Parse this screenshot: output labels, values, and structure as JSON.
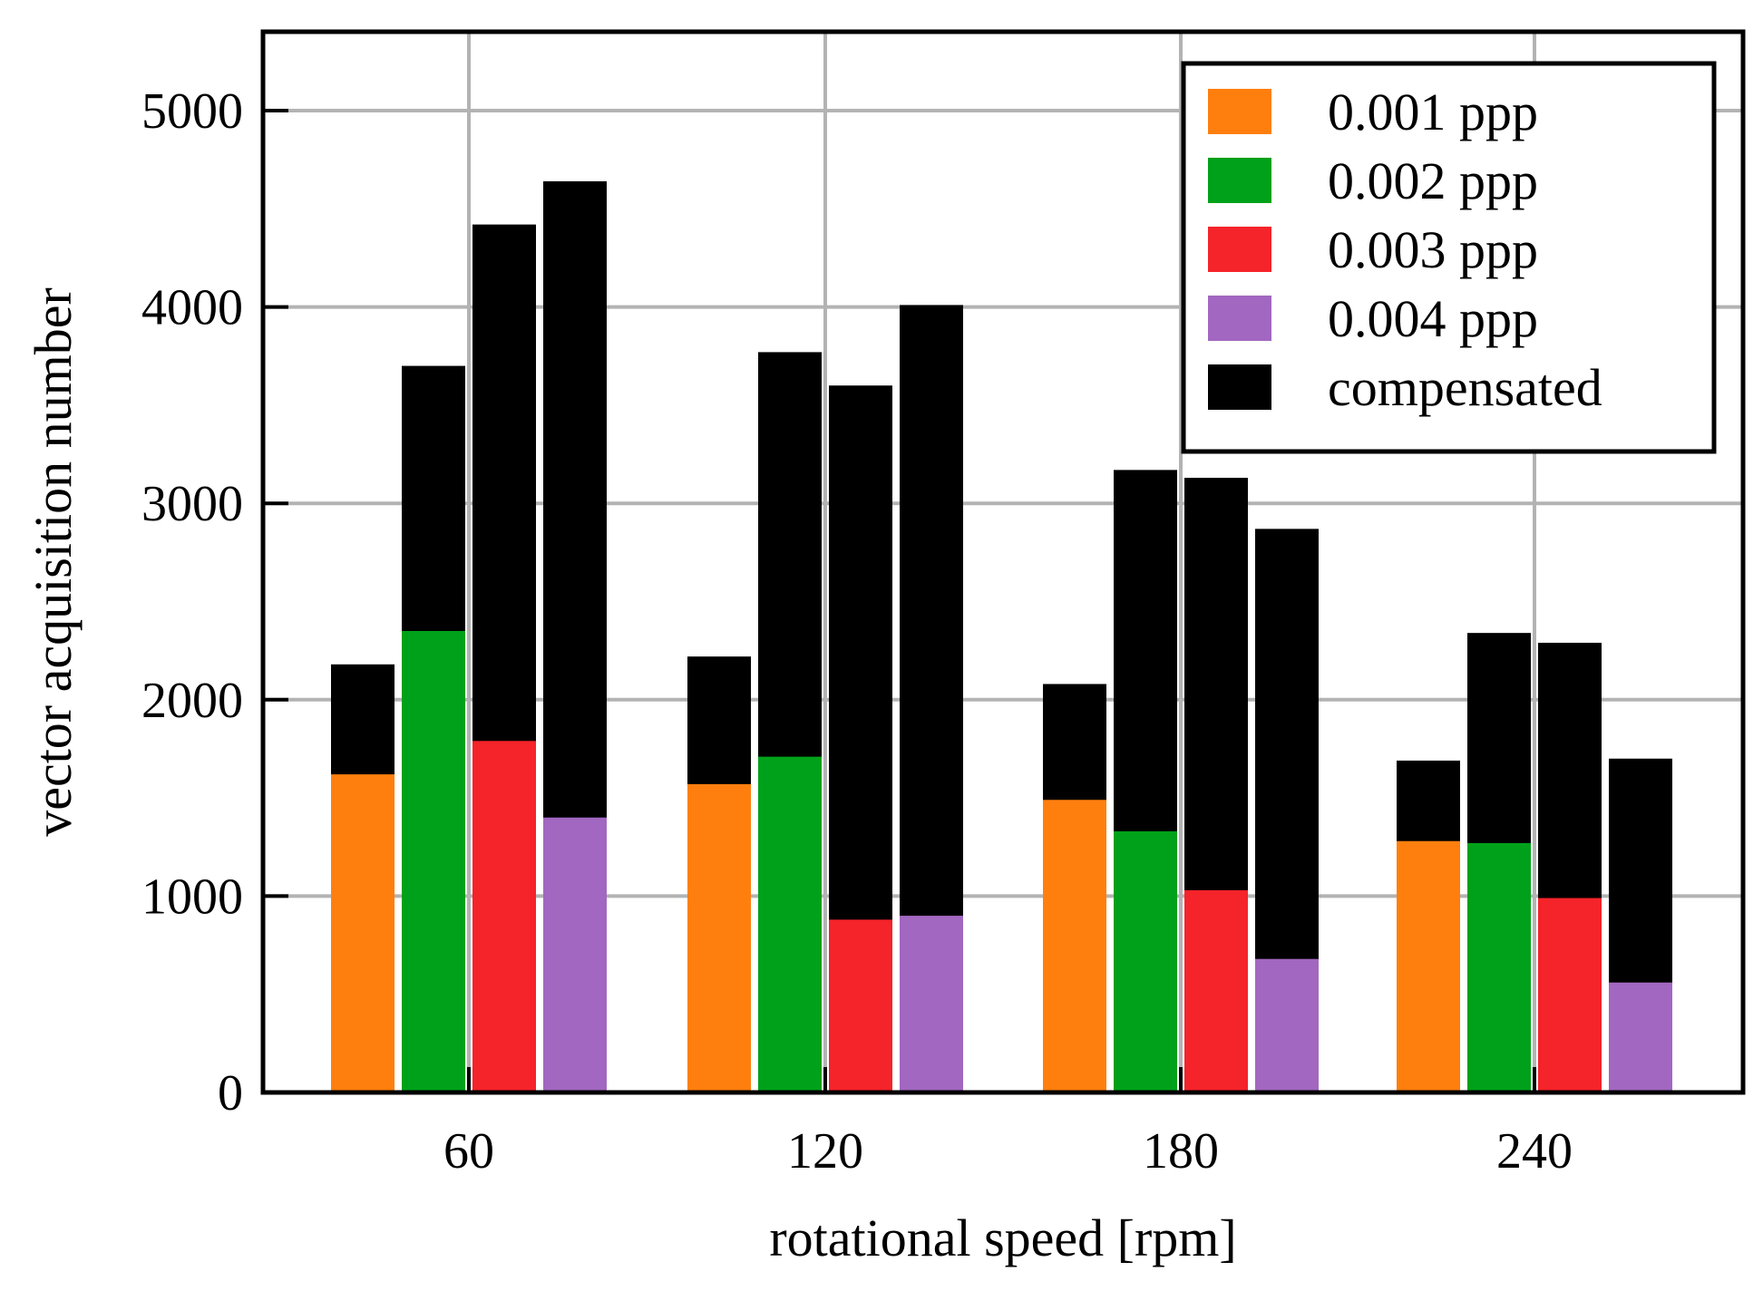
{
  "chart_data": {
    "type": "bar",
    "xlabel": "rotational speed [rpm]",
    "ylabel": "vector acquisition number",
    "categories": [
      "60",
      "120",
      "180",
      "240"
    ],
    "ylim": [
      0,
      5400
    ],
    "yticks": [
      0,
      1000,
      2000,
      3000,
      4000,
      5000
    ],
    "grid": true,
    "legend_position": "top-right",
    "series": [
      {
        "name": "0.001 ppp",
        "color": "#ff7f0e",
        "values": [
          1620,
          1570,
          1490,
          1280
        ],
        "compensated": [
          2180,
          2220,
          2080,
          1690
        ]
      },
      {
        "name": "0.002 ppp",
        "color": "#00a11a",
        "values": [
          2350,
          1710,
          1330,
          1270
        ],
        "compensated": [
          3700,
          3770,
          3170,
          2340
        ]
      },
      {
        "name": "0.003 ppp",
        "color": "#f5232a",
        "values": [
          1790,
          880,
          1030,
          990
        ],
        "compensated": [
          4420,
          3600,
          3130,
          2290
        ]
      },
      {
        "name": "0.004 ppp",
        "color": "#a267c0",
        "values": [
          1400,
          900,
          680,
          560
        ],
        "compensated": [
          4640,
          4010,
          2870,
          1700
        ]
      }
    ],
    "compensated_series": {
      "name": "compensated",
      "color": "#000000"
    }
  }
}
